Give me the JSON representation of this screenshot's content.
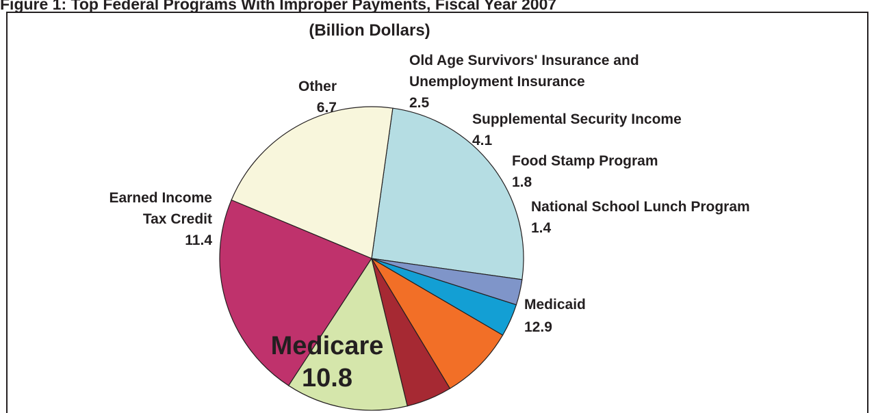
{
  "chart_data": {
    "type": "pie",
    "title": "Figure 1: Top Federal Programs With Improper Payments, Fiscal Year 2007",
    "subtitle": "(Billion Dollars)",
    "slices": [
      {
        "key": "medicaid",
        "label_lines": [
          "Medicaid"
        ],
        "value": 12.9,
        "value_label": "12.9",
        "color": "#b5dde3"
      },
      {
        "key": "medicare",
        "label_lines": [
          "Medicare"
        ],
        "value": 10.8,
        "value_label": "10.8",
        "color": "#f8f6dc"
      },
      {
        "key": "eitc",
        "label_lines": [
          "Earned Income",
          "Tax Credit"
        ],
        "value": 11.4,
        "value_label": "11.4",
        "color": "#bf326c"
      },
      {
        "key": "other",
        "label_lines": [
          "Other"
        ],
        "value": 6.7,
        "value_label": "6.7",
        "color": "#d5e6ab"
      },
      {
        "key": "oasi",
        "label_lines": [
          "Old Age Survivors' Insurance and",
          "Unemployment Insurance"
        ],
        "value": 2.5,
        "value_label": "2.5",
        "color": "#a62933"
      },
      {
        "key": "ssi",
        "label_lines": [
          "Supplemental Security Income"
        ],
        "value": 4.1,
        "value_label": "4.1",
        "color": "#f26f27"
      },
      {
        "key": "food",
        "label_lines": [
          "Food Stamp Program"
        ],
        "value": 1.8,
        "value_label": "1.8",
        "color": "#139fd4"
      },
      {
        "key": "nslp",
        "label_lines": [
          "National School Lunch Program"
        ],
        "value": 1.4,
        "value_label": "1.4",
        "color": "#7f95c9"
      }
    ]
  }
}
